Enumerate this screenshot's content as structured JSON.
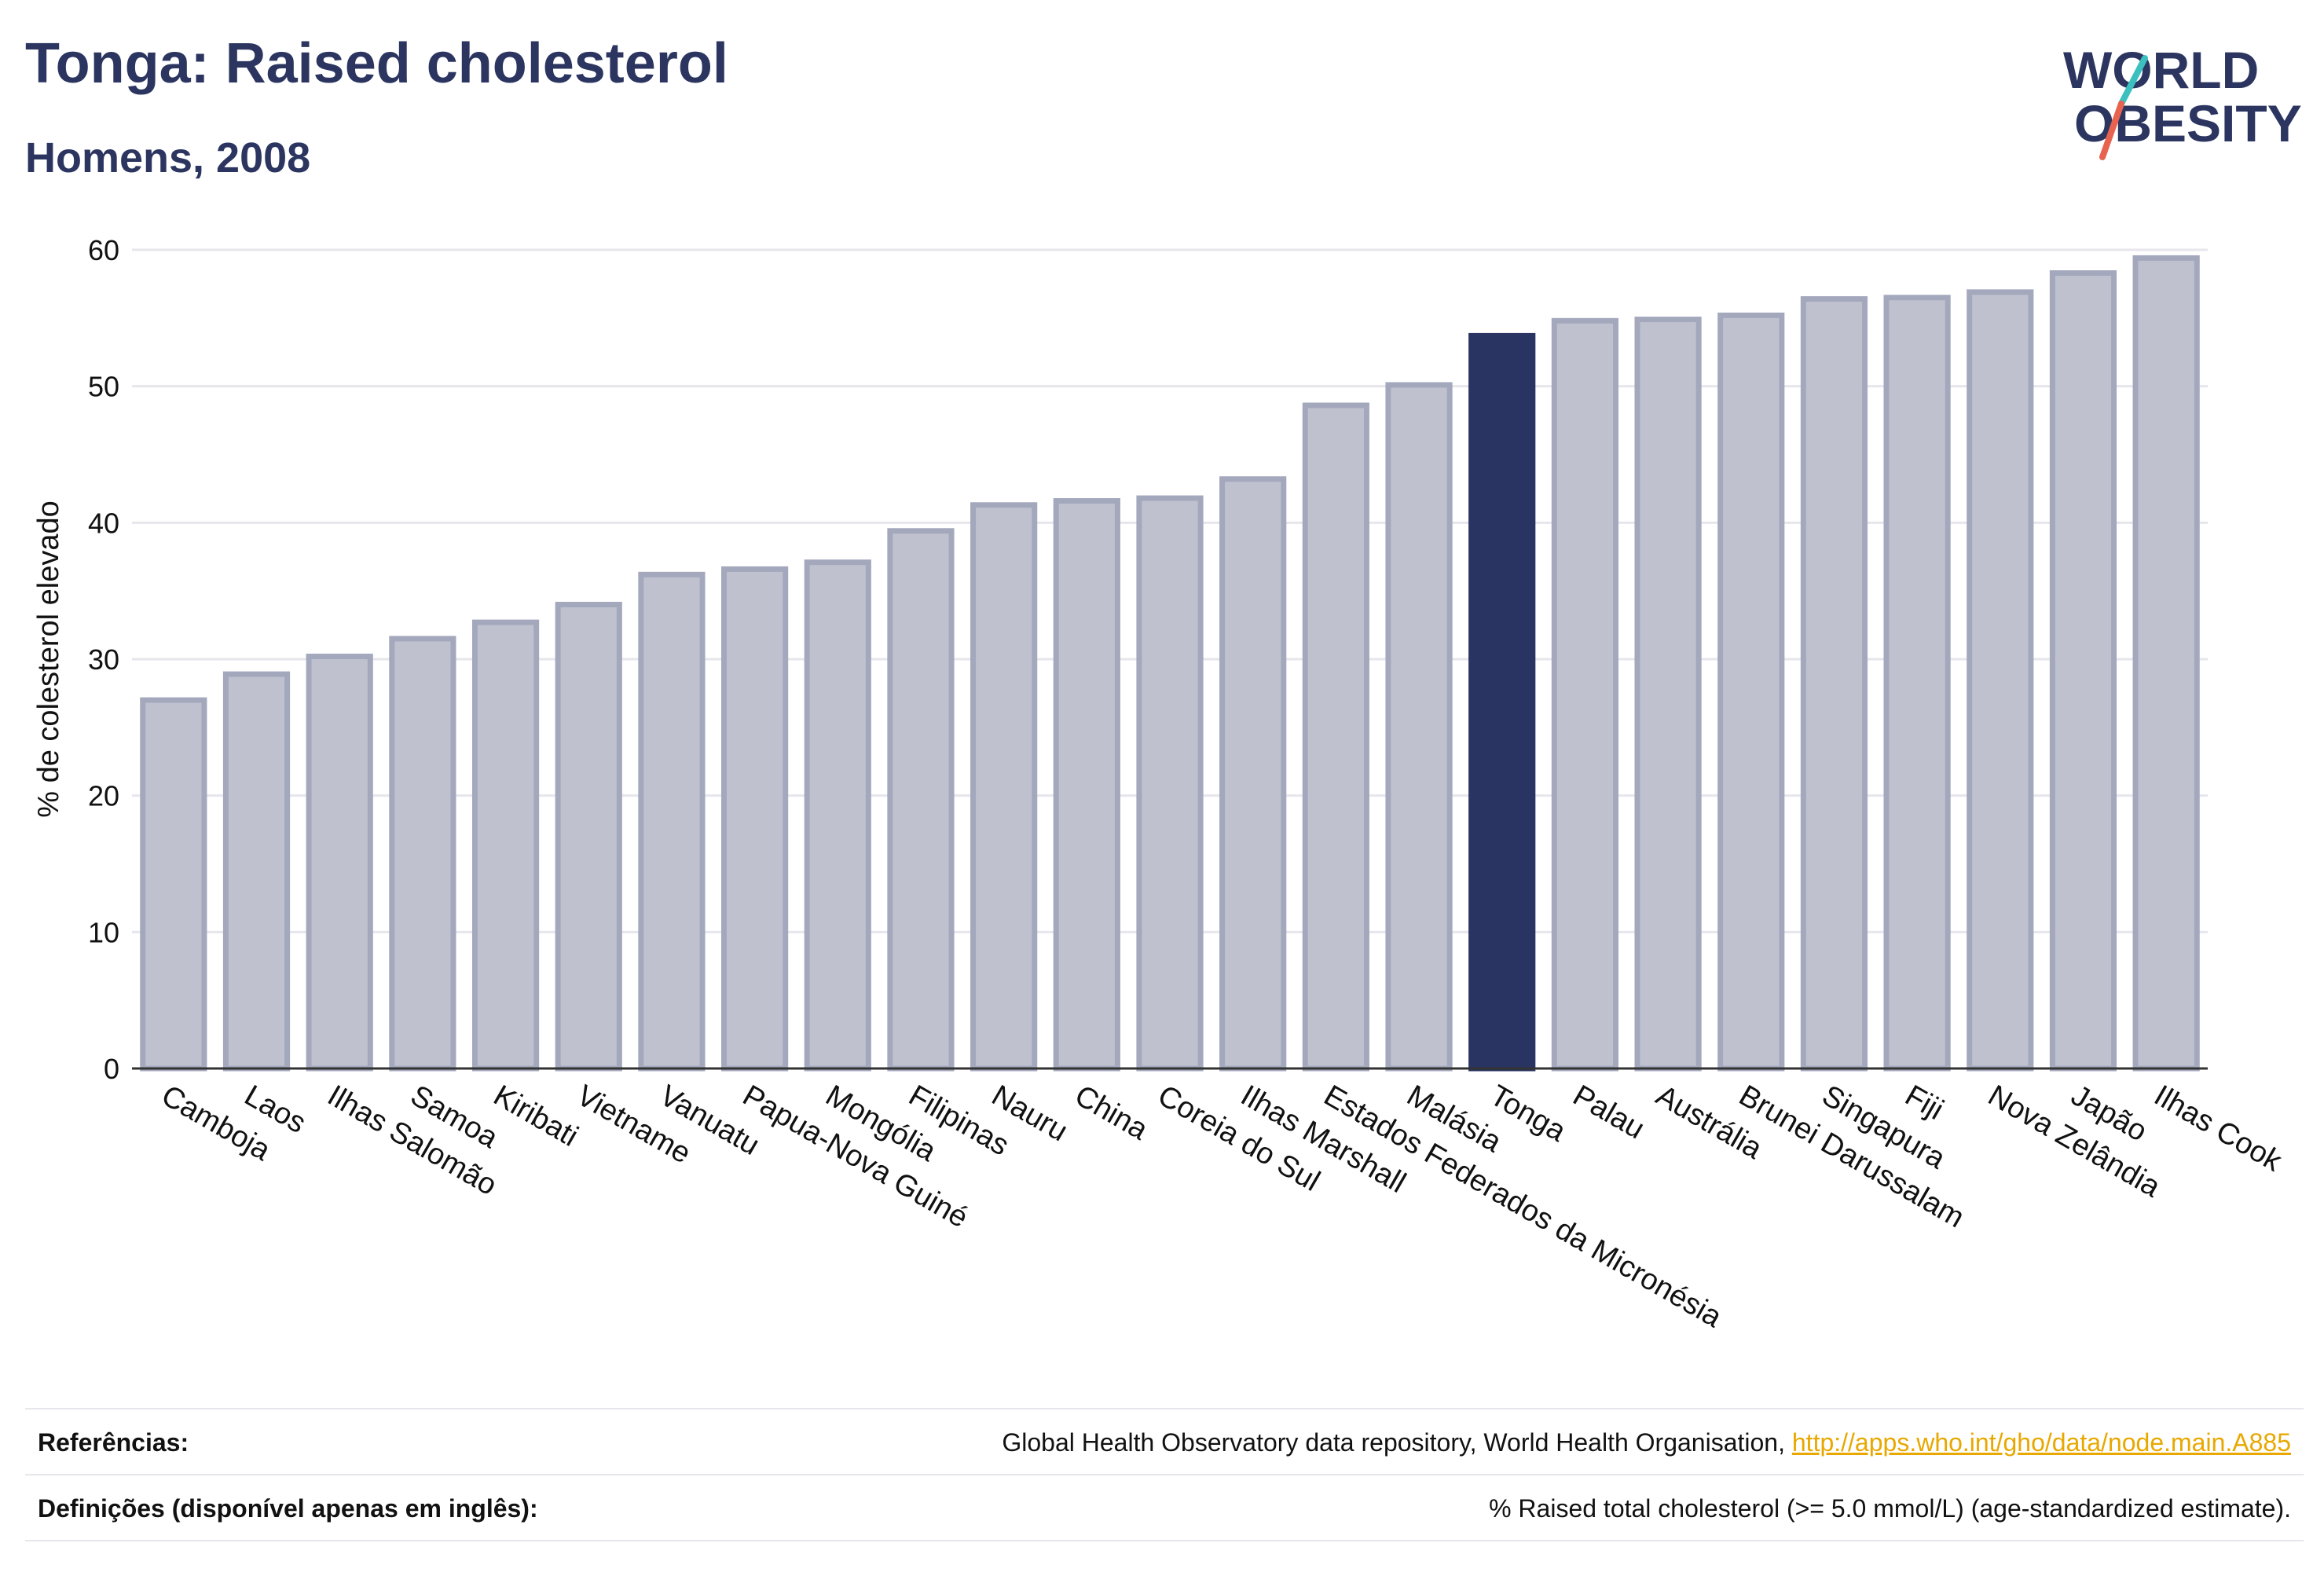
{
  "title": "Tonga: Raised cholesterol",
  "subtitle": "Homens, 2008",
  "logo": {
    "line1": "WORLD",
    "line2": "OBESITY",
    "colors": {
      "text": "#2b3560",
      "slash_top": "#3bbfbf",
      "slash_bottom": "#e8634f"
    }
  },
  "colors": {
    "bar": "#bfc2ce",
    "bar_border": "#a4a8bd",
    "highlight": "#293462",
    "grid": "#e6e6ec",
    "axis": "#333333"
  },
  "chart_data": {
    "type": "bar",
    "ylabel": "% de colesterol elevado",
    "xlabel": "",
    "ylim": [
      0,
      60
    ],
    "yticks": [
      0,
      10,
      20,
      30,
      40,
      50,
      60
    ],
    "grid": true,
    "highlight": "Tonga",
    "categories": [
      "Camboja",
      "Laos",
      "Ilhas Salomão",
      "Samoa",
      "Kiribati",
      "Vietname",
      "Vanuatu",
      "Papua-Nova Guiné",
      "Mongólia",
      "Filipinas",
      "Nauru",
      "China",
      "Coreia do Sul",
      "Ilhas Marshall",
      "Estados Federados da Micronésia",
      "Malásia",
      "Tonga",
      "Palau",
      "Austrália",
      "Brunei Darussalam",
      "Singapura",
      "Fiji",
      "Nova Zelândia",
      "Japão",
      "Ilhas Cook"
    ],
    "values": [
      27.0,
      28.9,
      30.2,
      31.5,
      32.7,
      34.0,
      36.2,
      36.6,
      37.1,
      39.4,
      41.3,
      41.6,
      41.8,
      43.2,
      48.6,
      50.1,
      53.7,
      54.8,
      54.9,
      55.2,
      56.4,
      56.5,
      56.9,
      58.3,
      59.4
    ]
  },
  "footer": {
    "references_label": "Referências:",
    "references_text": "Global Health Observatory data repository, World Health Organisation, ",
    "references_link": "http://apps.who.int/gho/data/node.main.A885",
    "definitions_label": "Definições (disponível apenas em inglês):",
    "definitions_text": "% Raised total cholesterol (>= 5.0 mmol/L) (age-standardized estimate)."
  }
}
